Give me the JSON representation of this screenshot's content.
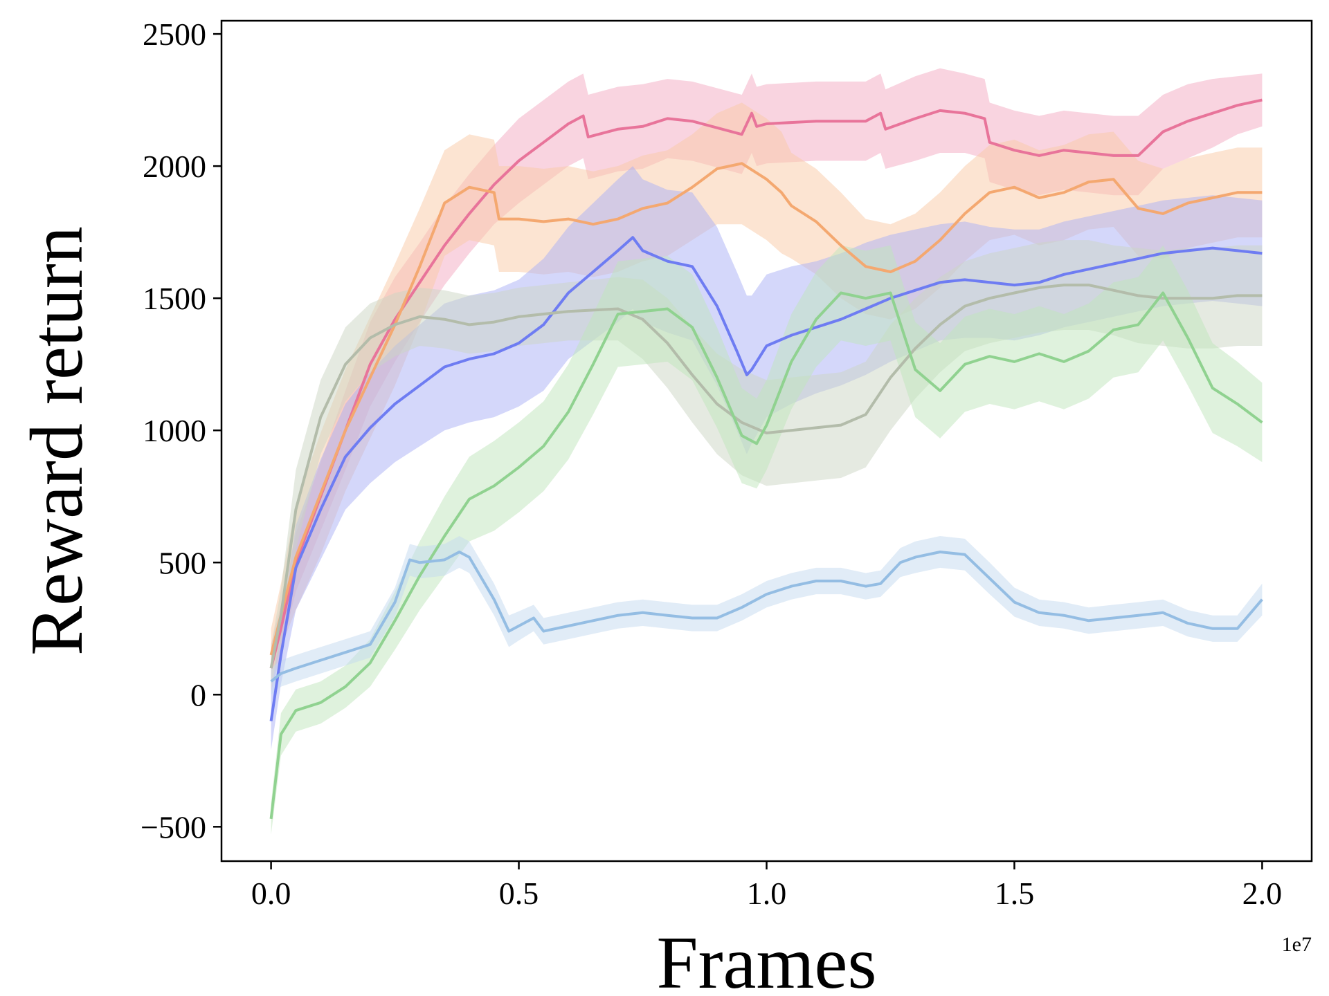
{
  "chart_data": {
    "type": "line",
    "title": "",
    "xlabel": "Frames",
    "ylabel": "Reward return",
    "x_offset_label": "1e7",
    "xlim": [
      -0.1,
      2.1
    ],
    "ylim": [
      -630,
      2550
    ],
    "xticks": [
      0.0,
      0.5,
      1.0,
      1.5,
      2.0
    ],
    "xtick_labels": [
      "0.0",
      "0.5",
      "1.0",
      "1.5",
      "2.0"
    ],
    "yticks": [
      -500,
      0,
      500,
      1000,
      1500,
      2000,
      2500
    ],
    "ytick_labels": [
      "−500",
      "0",
      "500",
      "1000",
      "1500",
      "2000",
      "2500"
    ],
    "grid": false,
    "legend": "none",
    "series": [
      {
        "name": "pink",
        "color": "#e8749a",
        "band_color": "#f4a9c1",
        "x": [
          0.0,
          0.02,
          0.05,
          0.1,
          0.15,
          0.2,
          0.25,
          0.3,
          0.35,
          0.4,
          0.45,
          0.5,
          0.55,
          0.6,
          0.63,
          0.64,
          0.7,
          0.75,
          0.8,
          0.85,
          0.95,
          0.97,
          0.98,
          1.0,
          1.1,
          1.2,
          1.23,
          1.24,
          1.3,
          1.35,
          1.4,
          1.44,
          1.45,
          1.5,
          1.55,
          1.6,
          1.65,
          1.7,
          1.75,
          1.8,
          1.85,
          1.9,
          1.95,
          2.0
        ],
        "y": [
          100,
          250,
          500,
          750,
          1000,
          1250,
          1420,
          1560,
          1700,
          1820,
          1930,
          2020,
          2090,
          2160,
          2190,
          2110,
          2140,
          2150,
          2180,
          2170,
          2120,
          2200,
          2150,
          2160,
          2170,
          2170,
          2200,
          2140,
          2180,
          2210,
          2200,
          2180,
          2090,
          2060,
          2040,
          2060,
          2050,
          2040,
          2040,
          2130,
          2170,
          2200,
          2230,
          2250
        ],
        "band": [
          90,
          90,
          110,
          130,
          150,
          160,
          160,
          150,
          150,
          150,
          150,
          160,
          160,
          160,
          160,
          160,
          160,
          160,
          150,
          150,
          150,
          150,
          150,
          150,
          150,
          150,
          150,
          150,
          160,
          160,
          150,
          150,
          150,
          150,
          150,
          150,
          150,
          150,
          150,
          140,
          140,
          130,
          110,
          100
        ]
      },
      {
        "name": "orange",
        "color": "#f4a870",
        "band_color": "#f9c9a5",
        "x": [
          0.0,
          0.02,
          0.05,
          0.1,
          0.15,
          0.2,
          0.25,
          0.3,
          0.35,
          0.4,
          0.45,
          0.46,
          0.5,
          0.55,
          0.6,
          0.65,
          0.7,
          0.75,
          0.8,
          0.85,
          0.9,
          0.95,
          1.0,
          1.03,
          1.05,
          1.1,
          1.15,
          1.2,
          1.25,
          1.3,
          1.35,
          1.4,
          1.45,
          1.5,
          1.55,
          1.6,
          1.65,
          1.7,
          1.75,
          1.8,
          1.85,
          1.9,
          1.95,
          2.0
        ],
        "y": [
          150,
          300,
          520,
          760,
          1000,
          1200,
          1400,
          1620,
          1860,
          1920,
          1900,
          1800,
          1800,
          1790,
          1800,
          1780,
          1800,
          1840,
          1860,
          1920,
          1990,
          2010,
          1950,
          1900,
          1850,
          1790,
          1700,
          1620,
          1600,
          1640,
          1720,
          1820,
          1900,
          1920,
          1880,
          1900,
          1940,
          1950,
          1840,
          1820,
          1860,
          1880,
          1900,
          1900
        ],
        "band": [
          100,
          120,
          200,
          230,
          230,
          230,
          230,
          220,
          200,
          200,
          200,
          200,
          200,
          200,
          200,
          200,
          200,
          200,
          200,
          200,
          210,
          230,
          230,
          230,
          200,
          200,
          200,
          180,
          180,
          180,
          180,
          180,
          180,
          180,
          180,
          180,
          180,
          180,
          180,
          170,
          170,
          170,
          170,
          170
        ]
      },
      {
        "name": "blue",
        "color": "#6e7cf2",
        "band_color": "#aab0f5",
        "x": [
          0.0,
          0.02,
          0.05,
          0.1,
          0.15,
          0.2,
          0.25,
          0.3,
          0.35,
          0.4,
          0.45,
          0.5,
          0.55,
          0.6,
          0.65,
          0.7,
          0.73,
          0.75,
          0.8,
          0.85,
          0.9,
          0.94,
          0.96,
          0.97,
          1.0,
          1.05,
          1.1,
          1.15,
          1.2,
          1.25,
          1.3,
          1.35,
          1.4,
          1.45,
          1.5,
          1.55,
          1.6,
          1.65,
          1.7,
          1.75,
          1.8,
          1.85,
          1.9,
          1.95,
          2.0
        ],
        "y": [
          -100,
          150,
          480,
          700,
          900,
          1010,
          1100,
          1170,
          1240,
          1270,
          1290,
          1330,
          1400,
          1520,
          1600,
          1680,
          1730,
          1680,
          1640,
          1620,
          1470,
          1300,
          1210,
          1230,
          1320,
          1360,
          1390,
          1420,
          1460,
          1500,
          1530,
          1560,
          1570,
          1560,
          1550,
          1560,
          1590,
          1610,
          1630,
          1650,
          1670,
          1680,
          1690,
          1680,
          1670
        ],
        "band": [
          110,
          110,
          160,
          190,
          200,
          210,
          220,
          230,
          240,
          240,
          240,
          240,
          250,
          250,
          260,
          270,
          270,
          270,
          270,
          280,
          300,
          300,
          300,
          280,
          270,
          260,
          250,
          250,
          250,
          240,
          230,
          220,
          220,
          210,
          210,
          200,
          200,
          200,
          200,
          200,
          200,
          200,
          200,
          200,
          200
        ]
      },
      {
        "name": "gray",
        "color": "#b3bcaa",
        "band_color": "#ccd5c3",
        "x": [
          0.0,
          0.02,
          0.05,
          0.1,
          0.15,
          0.2,
          0.25,
          0.3,
          0.35,
          0.4,
          0.45,
          0.5,
          0.6,
          0.7,
          0.75,
          0.8,
          0.85,
          0.9,
          0.95,
          1.0,
          1.05,
          1.1,
          1.15,
          1.2,
          1.25,
          1.3,
          1.35,
          1.4,
          1.45,
          1.5,
          1.55,
          1.6,
          1.65,
          1.7,
          1.75,
          1.8,
          1.85,
          1.9,
          1.95,
          2.0
        ],
        "y": [
          100,
          300,
          700,
          1050,
          1250,
          1350,
          1400,
          1430,
          1420,
          1400,
          1410,
          1430,
          1450,
          1460,
          1420,
          1330,
          1210,
          1100,
          1030,
          990,
          1000,
          1010,
          1020,
          1060,
          1200,
          1310,
          1400,
          1470,
          1500,
          1520,
          1540,
          1550,
          1550,
          1530,
          1510,
          1500,
          1500,
          1500,
          1510,
          1510
        ],
        "band": [
          80,
          100,
          150,
          140,
          140,
          130,
          120,
          110,
          110,
          110,
          110,
          110,
          110,
          120,
          150,
          170,
          180,
          190,
          200,
          200,
          200,
          200,
          200,
          200,
          200,
          190,
          180,
          170,
          170,
          170,
          170,
          170,
          170,
          170,
          180,
          180,
          190,
          190,
          190,
          190
        ]
      },
      {
        "name": "green",
        "color": "#90d290",
        "band_color": "#bfe6bc",
        "x": [
          0.0,
          0.02,
          0.05,
          0.1,
          0.15,
          0.2,
          0.25,
          0.3,
          0.35,
          0.4,
          0.45,
          0.5,
          0.55,
          0.6,
          0.65,
          0.7,
          0.75,
          0.8,
          0.85,
          0.9,
          0.95,
          0.98,
          1.0,
          1.05,
          1.1,
          1.15,
          1.2,
          1.25,
          1.3,
          1.35,
          1.4,
          1.45,
          1.5,
          1.55,
          1.6,
          1.65,
          1.7,
          1.75,
          1.8,
          1.85,
          1.9,
          1.95,
          2.0
        ],
        "y": [
          -470,
          -150,
          -60,
          -30,
          30,
          120,
          280,
          450,
          600,
          740,
          790,
          860,
          940,
          1070,
          1250,
          1440,
          1450,
          1460,
          1390,
          1200,
          980,
          950,
          1020,
          1260,
          1420,
          1520,
          1500,
          1520,
          1230,
          1150,
          1250,
          1280,
          1260,
          1290,
          1260,
          1300,
          1380,
          1400,
          1520,
          1350,
          1160,
          1100,
          1030
        ],
        "band": [
          60,
          80,
          80,
          80,
          80,
          90,
          110,
          130,
          150,
          160,
          170,
          170,
          170,
          180,
          190,
          200,
          200,
          200,
          200,
          190,
          180,
          170,
          170,
          180,
          180,
          180,
          180,
          180,
          180,
          180,
          180,
          180,
          180,
          180,
          180,
          180,
          180,
          180,
          180,
          180,
          170,
          160,
          150
        ]
      },
      {
        "name": "light-blue",
        "color": "#94bde3",
        "band_color": "#c4d9ef",
        "x": [
          0.0,
          0.02,
          0.05,
          0.1,
          0.15,
          0.2,
          0.25,
          0.28,
          0.3,
          0.35,
          0.38,
          0.4,
          0.45,
          0.48,
          0.5,
          0.53,
          0.55,
          0.6,
          0.65,
          0.7,
          0.75,
          0.8,
          0.85,
          0.9,
          0.95,
          1.0,
          1.05,
          1.1,
          1.15,
          1.2,
          1.23,
          1.27,
          1.3,
          1.35,
          1.4,
          1.45,
          1.5,
          1.55,
          1.6,
          1.65,
          1.7,
          1.75,
          1.8,
          1.85,
          1.9,
          1.95,
          2.0
        ],
        "y": [
          50,
          80,
          100,
          130,
          160,
          190,
          350,
          510,
          500,
          510,
          540,
          520,
          360,
          240,
          260,
          290,
          240,
          260,
          280,
          300,
          310,
          300,
          290,
          290,
          330,
          380,
          410,
          430,
          430,
          410,
          420,
          500,
          520,
          540,
          530,
          440,
          350,
          310,
          300,
          280,
          290,
          300,
          310,
          270,
          250,
          250,
          360
        ],
        "band": [
          50,
          50,
          50,
          50,
          50,
          50,
          55,
          60,
          60,
          60,
          60,
          60,
          60,
          60,
          55,
          50,
          50,
          50,
          50,
          50,
          50,
          50,
          50,
          50,
          50,
          50,
          50,
          50,
          50,
          50,
          50,
          55,
          60,
          60,
          60,
          60,
          55,
          50,
          50,
          50,
          50,
          50,
          50,
          50,
          50,
          50,
          60
        ]
      }
    ]
  }
}
